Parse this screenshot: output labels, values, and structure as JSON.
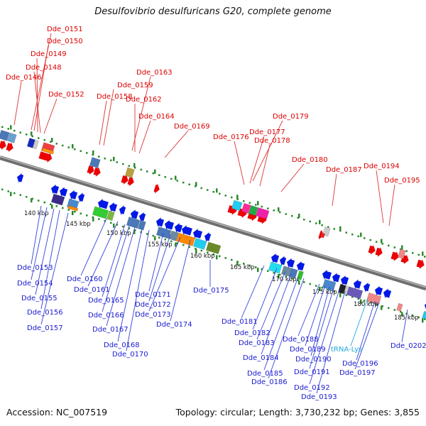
{
  "title": "Desulfovibrio desulfuricans G20, complete genome",
  "footer": {
    "accession": "Accession: NC_007519",
    "summary": "Topology: circular; Length: 3,730,232 bp; Genes: 3,855"
  },
  "colors": {
    "top_label": "#dd0000",
    "bottom_label": "#1a1ad0",
    "trna_label": "#22aadd",
    "forward_arrow": "#ee0000",
    "reverse_arrow": "#0018e8",
    "backbone": "#8a8a8a",
    "tick": "#2a8a2a"
  },
  "scale_ticks": [
    "140 kbp",
    "145 kbp",
    "150 kbp",
    "155 kbp",
    "160 kbp",
    "165 kbp",
    "170 kbp",
    "175 kbp",
    "180 kbp",
    "185 kbp"
  ],
  "top_labels": [
    "Dde_0151",
    "Dde_0150",
    "Dde_0149",
    "Dde_0148",
    "Dde_0146",
    "Dde_0152",
    "Dde_0163",
    "Dde_0159",
    "Dde_0158",
    "Dde_0162",
    "Dde_0164",
    "Dde_0169",
    "Dde_0179",
    "Dde_0176",
    "Dde_0177",
    "Dde_0178",
    "Dde_0180",
    "Dde_0187",
    "Dde_0194",
    "Dde_0195"
  ],
  "bottom_labels": [
    "Dde_0153",
    "Dde_0154",
    "Dde_0155",
    "Dde_0156",
    "Dde_0157",
    "Dde_0160",
    "Dde_0161",
    "Dde_0165",
    "Dde_0166",
    "Dde_0167",
    "Dde_0168",
    "Dde_0170",
    "Dde_0171",
    "Dde_0172",
    "Dde_0173",
    "Dde_0174",
    "Dde_0175",
    "Dde_0181",
    "Dde_0182",
    "Dde_0183",
    "Dde_0184",
    "Dde_0185",
    "Dde_0186",
    "Dde_0188",
    "Dde_0189",
    "Dde_0190",
    "Dde_0191",
    "Dde_0192",
    "Dde_0193",
    "tRNA-Lys",
    "Dde_0196",
    "Dde_0197",
    "Dde_0202"
  ]
}
